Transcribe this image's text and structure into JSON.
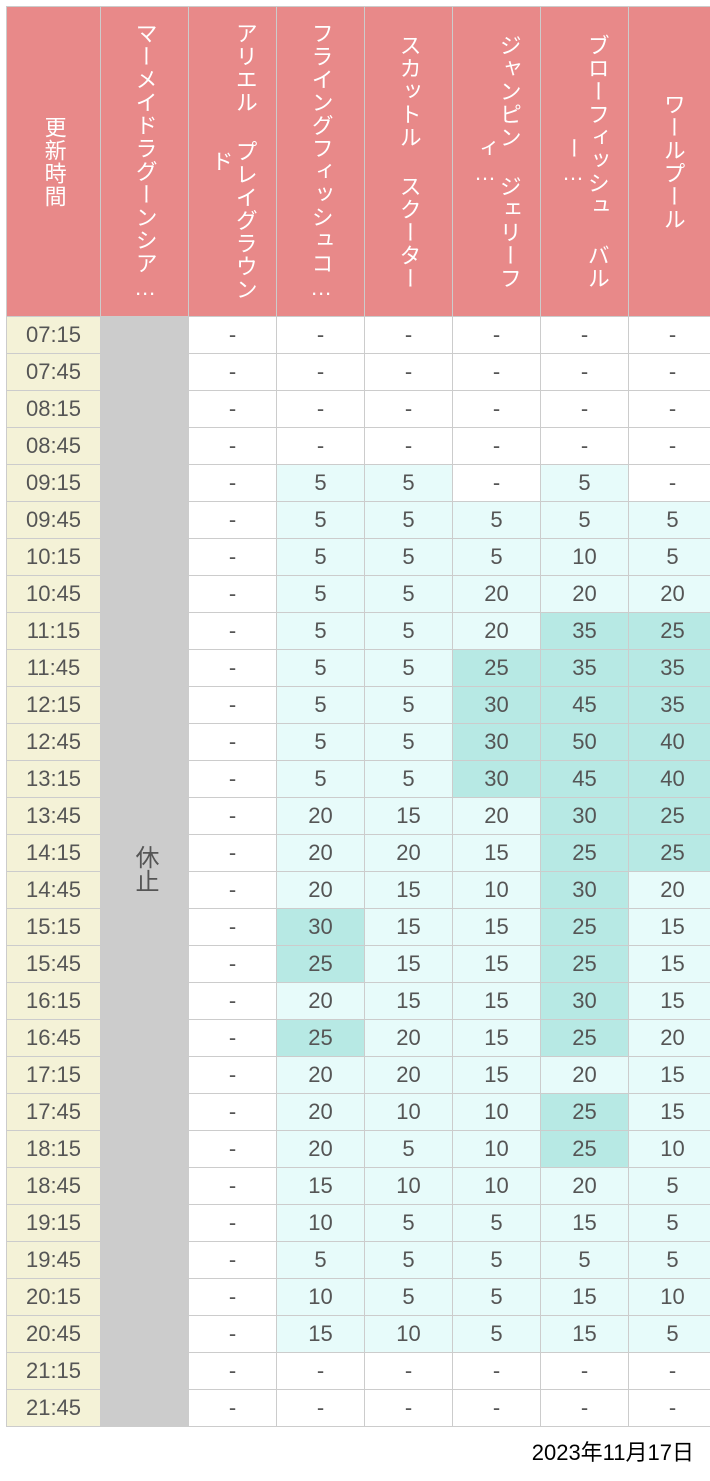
{
  "date_label": "2023年11月17日",
  "colors": {
    "header_bg": "#e88989",
    "header_text": "#ffffff",
    "time_bg": "#f4f2d7",
    "time_text": "#555555",
    "closed_bg": "#cccccc",
    "closed_text": "#555555",
    "cell_border": "#cccccc",
    "cell_text": "#555555",
    "tier_none": "#ffffff",
    "tier_low": "#e7fbfa",
    "tier_mid": "#b7e9e4",
    "background": "#ffffff"
  },
  "thresholds": {
    "low_min": 1,
    "mid_min": 25
  },
  "columns": [
    {
      "key": "time",
      "label": "更新時間",
      "type": "time"
    },
    {
      "key": "c1",
      "label": "マーメイドラグーンシア…",
      "type": "closed",
      "closed_label": "休止"
    },
    {
      "key": "c2",
      "label": "アリエル プレイグラウンド",
      "type": "data"
    },
    {
      "key": "c3",
      "label": "フライングフィッシュコ…",
      "type": "data"
    },
    {
      "key": "c4",
      "label": "スカットル スクーター",
      "type": "data"
    },
    {
      "key": "c5",
      "label": "ジャンピン ジェリーフィ…",
      "type": "data"
    },
    {
      "key": "c6",
      "label": "ブローフィッシュ バルー…",
      "type": "data"
    },
    {
      "key": "c7",
      "label": "ワールプール",
      "type": "data"
    }
  ],
  "rows": [
    {
      "time": "07:15",
      "c2": null,
      "c3": null,
      "c4": null,
      "c5": null,
      "c6": null,
      "c7": null
    },
    {
      "time": "07:45",
      "c2": null,
      "c3": null,
      "c4": null,
      "c5": null,
      "c6": null,
      "c7": null
    },
    {
      "time": "08:15",
      "c2": null,
      "c3": null,
      "c4": null,
      "c5": null,
      "c6": null,
      "c7": null
    },
    {
      "time": "08:45",
      "c2": null,
      "c3": null,
      "c4": null,
      "c5": null,
      "c6": null,
      "c7": null
    },
    {
      "time": "09:15",
      "c2": null,
      "c3": 5,
      "c4": 5,
      "c5": null,
      "c6": 5,
      "c7": null
    },
    {
      "time": "09:45",
      "c2": null,
      "c3": 5,
      "c4": 5,
      "c5": 5,
      "c6": 5,
      "c7": 5
    },
    {
      "time": "10:15",
      "c2": null,
      "c3": 5,
      "c4": 5,
      "c5": 5,
      "c6": 10,
      "c7": 5
    },
    {
      "time": "10:45",
      "c2": null,
      "c3": 5,
      "c4": 5,
      "c5": 20,
      "c6": 20,
      "c7": 20
    },
    {
      "time": "11:15",
      "c2": null,
      "c3": 5,
      "c4": 5,
      "c5": 20,
      "c6": 35,
      "c7": 25
    },
    {
      "time": "11:45",
      "c2": null,
      "c3": 5,
      "c4": 5,
      "c5": 25,
      "c6": 35,
      "c7": 35
    },
    {
      "time": "12:15",
      "c2": null,
      "c3": 5,
      "c4": 5,
      "c5": 30,
      "c6": 45,
      "c7": 35
    },
    {
      "time": "12:45",
      "c2": null,
      "c3": 5,
      "c4": 5,
      "c5": 30,
      "c6": 50,
      "c7": 40
    },
    {
      "time": "13:15",
      "c2": null,
      "c3": 5,
      "c4": 5,
      "c5": 30,
      "c6": 45,
      "c7": 40
    },
    {
      "time": "13:45",
      "c2": null,
      "c3": 20,
      "c4": 15,
      "c5": 20,
      "c6": 30,
      "c7": 25
    },
    {
      "time": "14:15",
      "c2": null,
      "c3": 20,
      "c4": 20,
      "c5": 15,
      "c6": 25,
      "c7": 25
    },
    {
      "time": "14:45",
      "c2": null,
      "c3": 20,
      "c4": 15,
      "c5": 10,
      "c6": 30,
      "c7": 20
    },
    {
      "time": "15:15",
      "c2": null,
      "c3": 30,
      "c4": 15,
      "c5": 15,
      "c6": 25,
      "c7": 15
    },
    {
      "time": "15:45",
      "c2": null,
      "c3": 25,
      "c4": 15,
      "c5": 15,
      "c6": 25,
      "c7": 15
    },
    {
      "time": "16:15",
      "c2": null,
      "c3": 20,
      "c4": 15,
      "c5": 15,
      "c6": 30,
      "c7": 15
    },
    {
      "time": "16:45",
      "c2": null,
      "c3": 25,
      "c4": 20,
      "c5": 15,
      "c6": 25,
      "c7": 20
    },
    {
      "time": "17:15",
      "c2": null,
      "c3": 20,
      "c4": 20,
      "c5": 15,
      "c6": 20,
      "c7": 15
    },
    {
      "time": "17:45",
      "c2": null,
      "c3": 20,
      "c4": 10,
      "c5": 10,
      "c6": 25,
      "c7": 15
    },
    {
      "time": "18:15",
      "c2": null,
      "c3": 20,
      "c4": 5,
      "c5": 10,
      "c6": 25,
      "c7": 10
    },
    {
      "time": "18:45",
      "c2": null,
      "c3": 15,
      "c4": 10,
      "c5": 10,
      "c6": 20,
      "c7": 5
    },
    {
      "time": "19:15",
      "c2": null,
      "c3": 10,
      "c4": 5,
      "c5": 5,
      "c6": 15,
      "c7": 5
    },
    {
      "time": "19:45",
      "c2": null,
      "c3": 5,
      "c4": 5,
      "c5": 5,
      "c6": 5,
      "c7": 5
    },
    {
      "time": "20:15",
      "c2": null,
      "c3": 10,
      "c4": 5,
      "c5": 5,
      "c6": 15,
      "c7": 10
    },
    {
      "time": "20:45",
      "c2": null,
      "c3": 15,
      "c4": 10,
      "c5": 5,
      "c6": 15,
      "c7": 5
    },
    {
      "time": "21:15",
      "c2": null,
      "c3": null,
      "c4": null,
      "c5": null,
      "c6": null,
      "c7": null
    },
    {
      "time": "21:45",
      "c2": null,
      "c3": null,
      "c4": null,
      "c5": null,
      "c6": null,
      "c7": null
    }
  ]
}
